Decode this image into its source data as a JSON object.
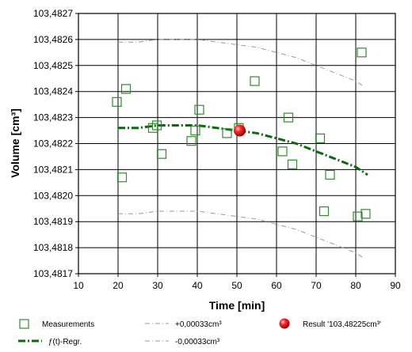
{
  "chart_data": {
    "type": "scatter",
    "xlabel": "Time [min]",
    "ylabel": "Volume [cm³]",
    "xlim": [
      10,
      90
    ],
    "ylim": [
      103.4817,
      103.4827
    ],
    "x_ticks": [
      "10",
      "20",
      "30",
      "40",
      "50",
      "60",
      "70",
      "80",
      "90"
    ],
    "y_ticks": [
      "103,4817",
      "103,4818",
      "103,4819",
      "103,4820",
      "103,4821",
      "103,4822",
      "103,4823",
      "103,4824",
      "103,4825",
      "103,4826",
      "103,4827"
    ],
    "grid": true,
    "colors": {
      "measurements": "#2e8b2e",
      "regression": "#0a6b0a",
      "band": "#9a9a9a",
      "result": "#e00000",
      "grid": "#000000"
    },
    "series": [
      {
        "name": "Measurements",
        "marker": "open-square",
        "points": [
          [
            19.7,
            103.48236
          ],
          [
            21.0,
            103.48207
          ],
          [
            22.0,
            103.48241
          ],
          [
            28.8,
            103.48226
          ],
          [
            29.8,
            103.48227
          ],
          [
            31.0,
            103.48216
          ],
          [
            38.5,
            103.48221
          ],
          [
            39.5,
            103.48225
          ],
          [
            40.5,
            103.48233
          ],
          [
            47.5,
            103.48224
          ],
          [
            50.5,
            103.48226
          ],
          [
            54.5,
            103.48244
          ],
          [
            61.5,
            103.48217
          ],
          [
            63.0,
            103.4823
          ],
          [
            64.0,
            103.48212
          ],
          [
            71.0,
            103.48222
          ],
          [
            72.0,
            103.48194
          ],
          [
            73.5,
            103.48208
          ],
          [
            80.5,
            103.48192
          ],
          [
            81.5,
            103.48255
          ],
          [
            82.5,
            103.48193
          ]
        ]
      },
      {
        "name": "ƒ(t)-Regr.",
        "line": "dash-dot",
        "points": [
          [
            20,
            103.48226
          ],
          [
            25,
            103.48226
          ],
          [
            30,
            103.48227
          ],
          [
            35,
            103.48227
          ],
          [
            40,
            103.48227
          ],
          [
            45,
            103.48226
          ],
          [
            50,
            103.48225
          ],
          [
            55,
            103.48224
          ],
          [
            60,
            103.48222
          ],
          [
            65,
            103.4822
          ],
          [
            70,
            103.48217
          ],
          [
            75,
            103.48214
          ],
          [
            80,
            103.48211
          ],
          [
            83,
            103.48208
          ]
        ]
      },
      {
        "name": "+0,00033cm³",
        "line": "dash-dot-thin",
        "points": [
          [
            20,
            103.48259
          ],
          [
            25,
            103.48259
          ],
          [
            30,
            103.4826
          ],
          [
            35,
            103.4826
          ],
          [
            40,
            103.4826
          ],
          [
            45,
            103.48259
          ],
          [
            50,
            103.48258
          ],
          [
            55,
            103.48257
          ],
          [
            60,
            103.48255
          ],
          [
            65,
            103.48253
          ],
          [
            70,
            103.4825
          ],
          [
            75,
            103.48247
          ],
          [
            80,
            103.48244
          ],
          [
            82,
            103.48242
          ]
        ]
      },
      {
        "name": "-0,00033cm³",
        "line": "dash-dot-thin",
        "points": [
          [
            20,
            103.48193
          ],
          [
            25,
            103.48193
          ],
          [
            30,
            103.48194
          ],
          [
            35,
            103.48194
          ],
          [
            40,
            103.48194
          ],
          [
            45,
            103.48193
          ],
          [
            50,
            103.48192
          ],
          [
            55,
            103.48191
          ],
          [
            60,
            103.48189
          ],
          [
            65,
            103.48187
          ],
          [
            70,
            103.48184
          ],
          [
            75,
            103.48181
          ],
          [
            80,
            103.48178
          ],
          [
            82,
            103.48176
          ]
        ]
      },
      {
        "name": "Result '103,48225cm³'",
        "marker": "red-sphere",
        "points": [
          [
            50.7,
            103.48225
          ]
        ]
      }
    ],
    "legend": {
      "placement": "bottom",
      "items": [
        {
          "label": "Measurements",
          "symbol": "open-square"
        },
        {
          "label": "+0,00033cm³",
          "symbol": "dash-dot-thin"
        },
        {
          "label": "Result '103,48225cm³'",
          "symbol": "red-sphere"
        },
        {
          "label": "ƒ(t)-Regr.",
          "symbol": "dash-dot"
        },
        {
          "label": "-0,00033cm³",
          "symbol": "dash-dot-thin"
        }
      ]
    }
  }
}
